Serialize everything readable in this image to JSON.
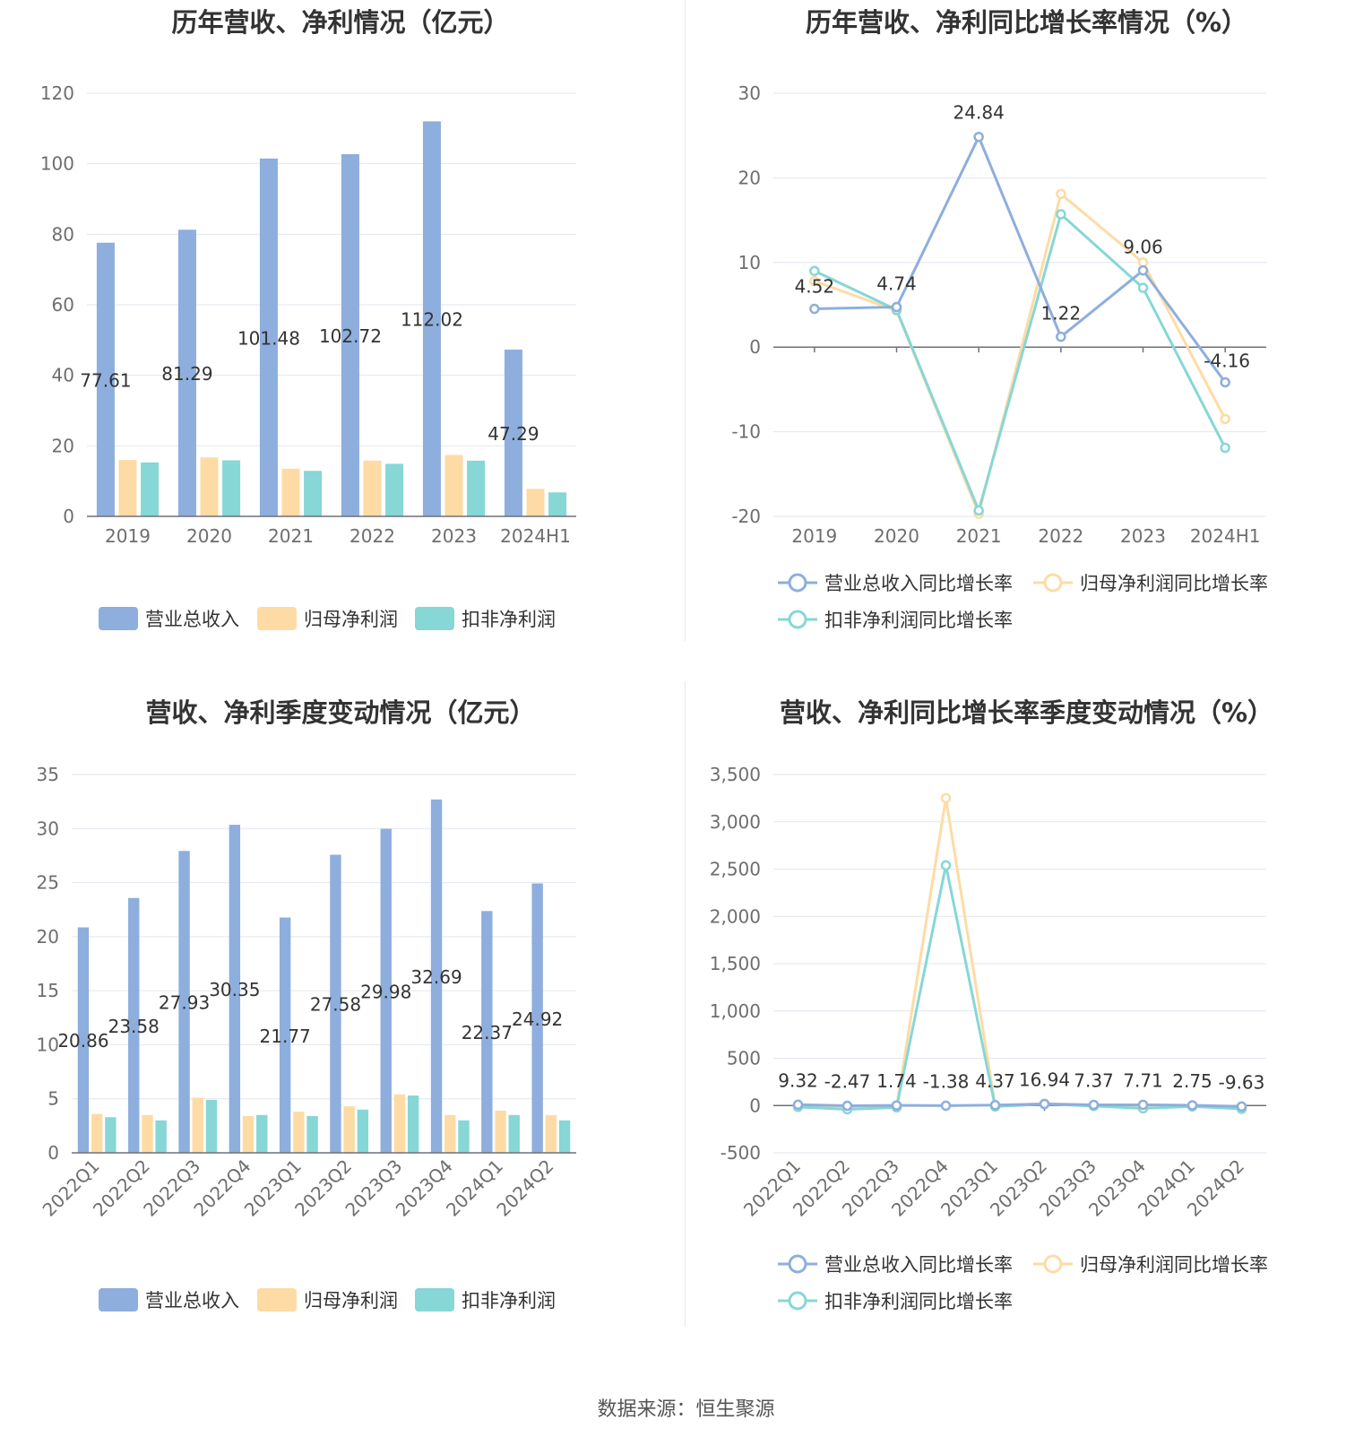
{
  "source": "数据来源：恒生聚源",
  "colors": {
    "revenue": "#8eaedd",
    "net_profit": "#fedba5",
    "deducted": "#86d7d6"
  },
  "charts": [
    {
      "title": "历年营收、净利情况（亿元）",
      "chart_data": {
        "type": "bar",
        "categories": [
          "2019",
          "2020",
          "2021",
          "2022",
          "2023",
          "2024H1"
        ],
        "ylim": [
          0,
          120
        ],
        "yticks": [
          0,
          20,
          40,
          60,
          80,
          100,
          120
        ],
        "grid": true,
        "legend_position": "bottom",
        "series": [
          {
            "name": "营业总收入",
            "values": [
              77.61,
              81.29,
              101.48,
              102.72,
              112.02,
              47.29
            ],
            "labels": [
              "77.61",
              "81.29",
              "101.48",
              "102.72",
              "112.02",
              "47.29"
            ]
          },
          {
            "name": "归母净利润",
            "values": [
              16.0,
              16.7,
              13.5,
              15.8,
              17.4,
              7.8
            ]
          },
          {
            "name": "扣非净利润",
            "values": [
              15.3,
              15.9,
              12.9,
              14.9,
              15.8,
              6.8
            ]
          }
        ]
      }
    },
    {
      "title": "历年营收、净利同比增长率情况（%）",
      "chart_data": {
        "type": "line",
        "categories": [
          "2019",
          "2020",
          "2021",
          "2022",
          "2023",
          "2024H1"
        ],
        "ylim": [
          -20,
          30
        ],
        "yticks": [
          -20,
          -10,
          0,
          10,
          20,
          30
        ],
        "grid": true,
        "legend_position": "bottom",
        "series": [
          {
            "name": "营业总收入同比增长率",
            "values": [
              4.52,
              4.74,
              24.84,
              1.22,
              9.06,
              -4.16
            ],
            "labels": [
              "4.52",
              "4.74",
              "24.84",
              "1.22",
              "9.06",
              "-4.16"
            ]
          },
          {
            "name": "归母净利润同比增长率",
            "values": [
              7.8,
              4.3,
              -19.7,
              18.1,
              10.0,
              -8.5
            ]
          },
          {
            "name": "扣非净利润同比增长率",
            "values": [
              9.0,
              4.4,
              -19.3,
              15.7,
              7.0,
              -11.9
            ]
          }
        ]
      }
    },
    {
      "title": "营收、净利季度变动情况（亿元）",
      "chart_data": {
        "type": "bar",
        "categories": [
          "2022Q1",
          "2022Q2",
          "2022Q3",
          "2022Q4",
          "2023Q1",
          "2023Q2",
          "2023Q3",
          "2023Q4",
          "2024Q1",
          "2024Q2"
        ],
        "ylim": [
          0,
          35
        ],
        "yticks": [
          0,
          5,
          10,
          15,
          20,
          25,
          30,
          35
        ],
        "grid": true,
        "legend_position": "bottom",
        "series": [
          {
            "name": "营业总收入",
            "values": [
              20.86,
              23.58,
              27.93,
              30.35,
              21.77,
              27.58,
              29.98,
              32.69,
              22.37,
              24.92
            ],
            "labels": [
              "20.86",
              "23.58",
              "27.93",
              "30.35",
              "21.77",
              "27.58",
              "29.98",
              "32.69",
              "22.37",
              "24.92"
            ]
          },
          {
            "name": "归母净利润",
            "values": [
              3.6,
              3.5,
              5.1,
              3.4,
              3.8,
              4.3,
              5.4,
              3.5,
              3.9,
              3.5
            ]
          },
          {
            "name": "扣非净利润",
            "values": [
              3.3,
              3.0,
              4.9,
              3.5,
              3.4,
              4.0,
              5.3,
              3.0,
              3.5,
              3.0
            ]
          }
        ]
      }
    },
    {
      "title": "营收、净利同比增长率季度变动情况（%）",
      "chart_data": {
        "type": "line",
        "categories": [
          "2022Q1",
          "2022Q2",
          "2022Q3",
          "2022Q4",
          "2023Q1",
          "2023Q2",
          "2023Q3",
          "2023Q4",
          "2024Q1",
          "2024Q2"
        ],
        "ylim": [
          -500,
          3500
        ],
        "yticks": [
          -500,
          0,
          500,
          1000,
          1500,
          2000,
          2500,
          3000,
          3500
        ],
        "ytick_labels": [
          "-500",
          "0",
          "500",
          "1,000",
          "1,500",
          "2,000",
          "2,500",
          "3,000",
          "3,500"
        ],
        "grid": true,
        "legend_position": "bottom",
        "series": [
          {
            "name": "营业总收入同比增长率",
            "values": [
              9.32,
              -2.47,
              1.74,
              -1.38,
              4.37,
              16.94,
              7.37,
              7.71,
              2.75,
              -9.63
            ],
            "labels": [
              "9.32",
              "-2.47",
              "1.74",
              "-1.38",
              "4.37",
              "16.94",
              "7.37",
              "7.71",
              "2.75",
              "-9.63"
            ]
          },
          {
            "name": "归母净利润同比增长率",
            "values": [
              -10,
              -30,
              -15,
              3250,
              -5,
              20,
              5,
              -5,
              0,
              -20
            ]
          },
          {
            "name": "扣非净利润同比增长率",
            "values": [
              -15,
              -40,
              -20,
              2540,
              -10,
              15,
              -5,
              -30,
              -10,
              -35
            ]
          }
        ]
      }
    }
  ]
}
